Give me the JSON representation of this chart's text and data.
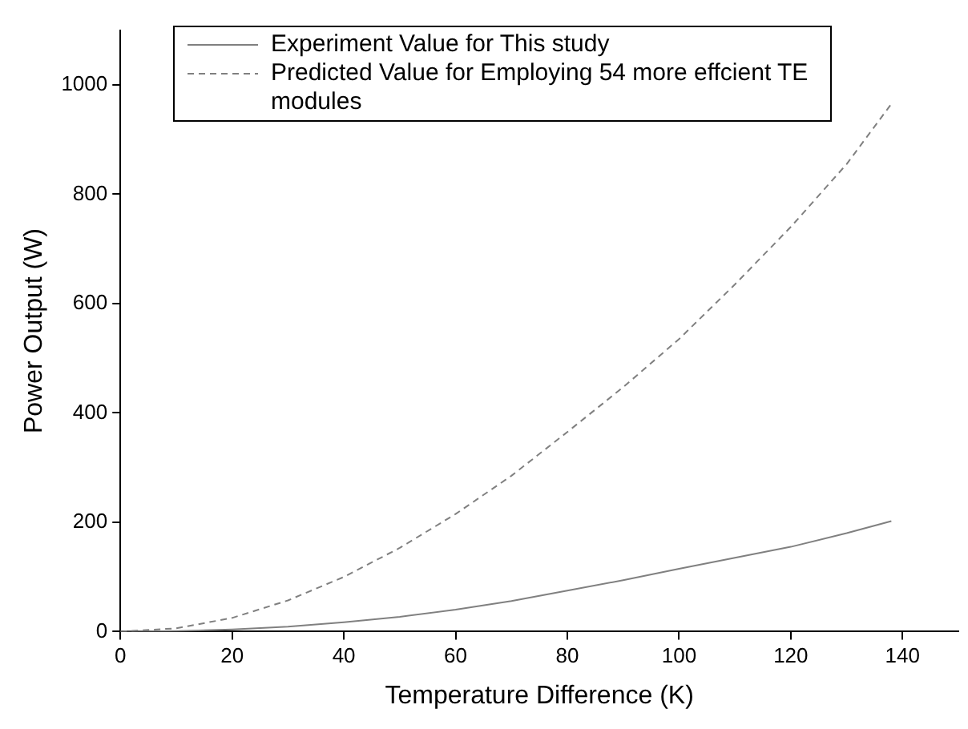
{
  "chart_data": {
    "type": "line",
    "xlabel": "Temperature Difference (K)",
    "ylabel": "Power Output (W)",
    "xlim": [
      0,
      150
    ],
    "xticks": [
      0,
      20,
      40,
      60,
      80,
      100,
      120,
      140
    ],
    "ylim": [
      0,
      1100
    ],
    "yticks": [
      0,
      200,
      400,
      600,
      800,
      1000
    ],
    "grid": false,
    "legend": "top left",
    "marker": "none",
    "series": [
      {
        "name": "Experiment Value for This study",
        "color": "#808080",
        "line_style": "solid",
        "x": [
          0,
          10,
          20,
          30,
          40,
          50,
          60,
          70,
          80,
          90,
          100,
          110,
          120,
          130,
          138
        ],
        "values": [
          0,
          1,
          4,
          9,
          17,
          27,
          40,
          56,
          75,
          94,
          115,
          135,
          155,
          180,
          202
        ]
      },
      {
        "name": "Predicted Value for Employing 54 more effcient TE modules",
        "color": "#808080",
        "line_style": "dashed",
        "x": [
          0,
          10,
          20,
          30,
          40,
          50,
          60,
          70,
          80,
          90,
          100,
          110,
          120,
          130,
          138
        ],
        "values": [
          0,
          6,
          25,
          57,
          100,
          153,
          215,
          285,
          365,
          447,
          535,
          635,
          740,
          855,
          965
        ]
      }
    ]
  }
}
